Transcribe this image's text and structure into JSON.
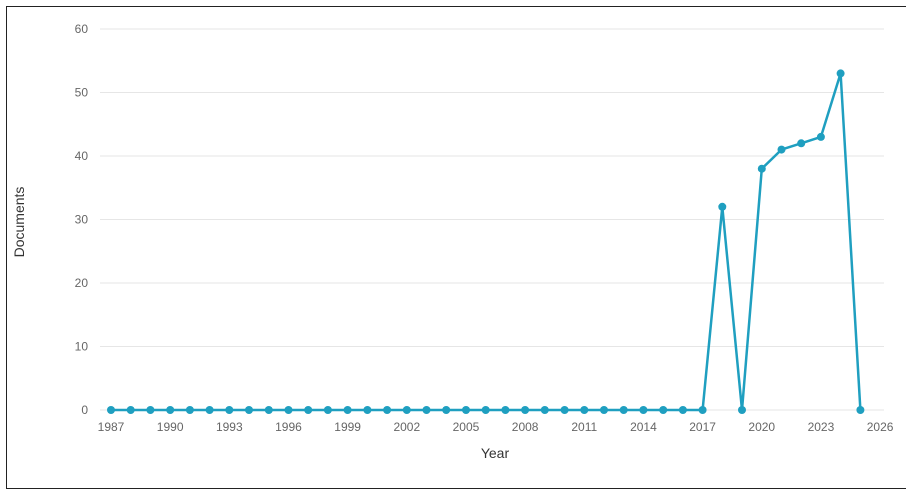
{
  "chart_data": {
    "type": "line",
    "title": "",
    "xlabel": "Year",
    "ylabel": "Documents",
    "ylim": [
      0,
      60
    ],
    "y_ticks": [
      0,
      10,
      20,
      30,
      40,
      50,
      60
    ],
    "x_ticks": [
      "1987",
      "1990",
      "1993",
      "1996",
      "1999",
      "2002",
      "2005",
      "2008",
      "2011",
      "2014",
      "2017",
      "2020",
      "2023",
      "2026"
    ],
    "x": [
      1987,
      1988,
      1989,
      1990,
      1991,
      1992,
      1993,
      1994,
      1995,
      1996,
      1997,
      1998,
      1999,
      2000,
      2001,
      2002,
      2003,
      2004,
      2005,
      2006,
      2007,
      2008,
      2009,
      2010,
      2011,
      2012,
      2013,
      2014,
      2015,
      2016,
      2017,
      2018,
      2019,
      2020,
      2021,
      2022,
      2023,
      2024,
      2025
    ],
    "series": [
      {
        "values": [
          0,
          0,
          0,
          0,
          0,
          0,
          0,
          0,
          0,
          0,
          0,
          0,
          0,
          0,
          0,
          0,
          0,
          0,
          0,
          0,
          0,
          0,
          0,
          0,
          0,
          0,
          0,
          0,
          0,
          0,
          0,
          32,
          0,
          38,
          41,
          42,
          43,
          53,
          0
        ],
        "color": "#1f9fc0"
      }
    ],
    "grid": true,
    "legend": "none",
    "colors": {
      "line": "#1f9fc0",
      "grid": "#e6e6e6",
      "ticks": "#666666",
      "axis_title": "#333333"
    }
  }
}
